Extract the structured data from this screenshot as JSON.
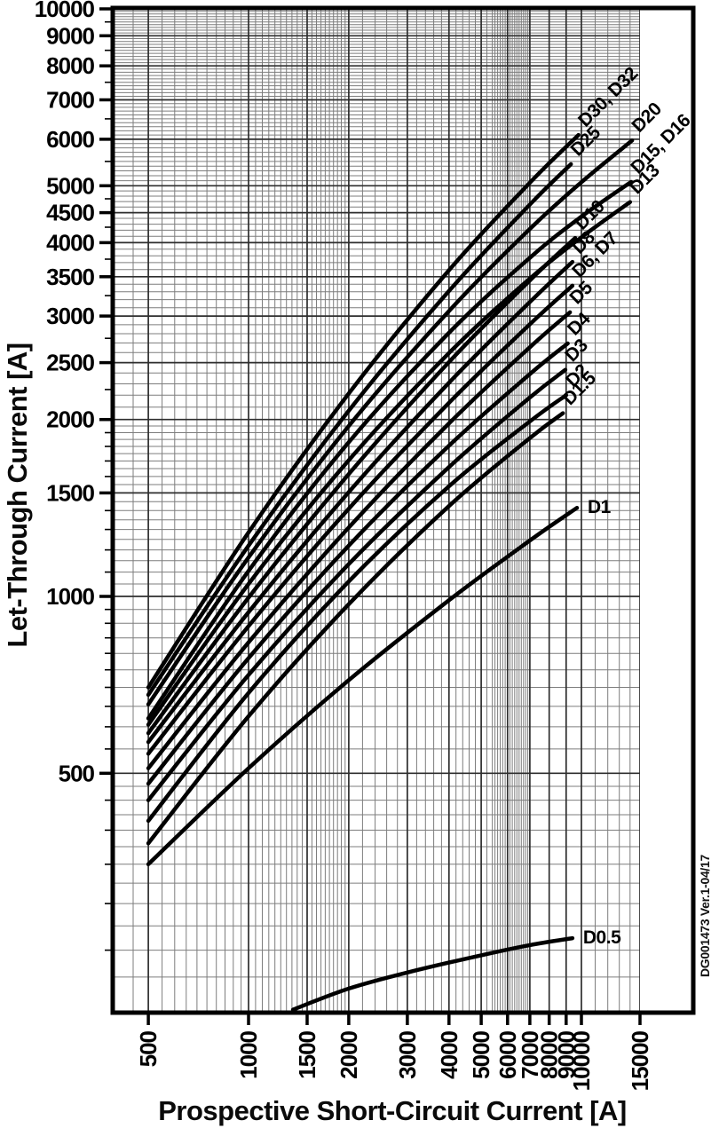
{
  "watermark": "DG001473 Ver.1-04/17",
  "colors": {
    "curve": "#000000",
    "grid_minor": "#7d7d7d",
    "grid_major": "#2e2e2e",
    "border": "#000000",
    "text": "#000000"
  },
  "chart_data": {
    "type": "line",
    "title": "",
    "xlabel": "Prospective Short-Circuit Current [A]",
    "ylabel": "Let-Through Current [A]",
    "watermark": "DG001473 Ver.1-04/17",
    "x_scale": "log",
    "y_scale": "log",
    "xlim": [
      400,
      21500
    ],
    "ylim": [
      197,
      10000
    ],
    "x_grid_max": 15000,
    "grid": "on",
    "x_ticks": [
      500,
      1000,
      1500,
      2000,
      3000,
      4000,
      5000,
      6000,
      7000,
      8000,
      9000,
      10000,
      15000
    ],
    "y_ticks": [
      500,
      1000,
      1500,
      2000,
      2500,
      3000,
      3500,
      4000,
      4500,
      5000,
      6000,
      7000,
      8000,
      9000,
      10000
    ],
    "y_minor_axis_ticks": [
      250,
      300,
      350,
      400,
      450,
      550,
      600,
      650,
      700,
      750,
      800,
      850,
      900,
      950,
      1100,
      1200,
      1300,
      1400,
      1600,
      1700,
      1800,
      1900,
      2250,
      2750,
      3250,
      3750,
      4250,
      4750,
      5500,
      6500,
      7500,
      8500,
      9500
    ],
    "series": [
      {
        "name": "D30, D32",
        "label_rotated": true,
        "points": [
          [
            500,
            700
          ],
          [
            1000,
            1285
          ],
          [
            2000,
            2215
          ],
          [
            4000,
            3590
          ],
          [
            7000,
            5060
          ],
          [
            9800,
            6100
          ]
        ]
      },
      {
        "name": "D25",
        "label_rotated": true,
        "points": [
          [
            500,
            680
          ],
          [
            1000,
            1220
          ],
          [
            2000,
            2070
          ],
          [
            4000,
            3310
          ],
          [
            7000,
            4645
          ],
          [
            9300,
            5440
          ]
        ]
      },
      {
        "name": "D20",
        "label_rotated": true,
        "points": [
          [
            500,
            655
          ],
          [
            1000,
            1165
          ],
          [
            2000,
            1950
          ],
          [
            4000,
            3060
          ],
          [
            7000,
            4220
          ],
          [
            10000,
            5070
          ],
          [
            14200,
            5970
          ]
        ]
      },
      {
        "name": "D15, D16",
        "label_rotated": true,
        "points": [
          [
            500,
            620
          ],
          [
            1000,
            1105
          ],
          [
            2000,
            1830
          ],
          [
            4000,
            2810
          ],
          [
            7000,
            3770
          ],
          [
            10000,
            4430
          ],
          [
            14100,
            5075
          ]
        ]
      },
      {
        "name": "D13",
        "label_rotated": true,
        "points": [
          [
            500,
            605
          ],
          [
            1000,
            1050
          ],
          [
            2000,
            1705
          ],
          [
            4000,
            2595
          ],
          [
            7000,
            3475
          ],
          [
            10000,
            4085
          ],
          [
            14000,
            4690
          ]
        ]
      },
      {
        "name": "D10",
        "label_rotated": true,
        "points": [
          [
            500,
            585
          ],
          [
            1000,
            995
          ],
          [
            2000,
            1615
          ],
          [
            4000,
            2505
          ],
          [
            7000,
            3450
          ],
          [
            9580,
            4075
          ]
        ]
      },
      {
        "name": "D8",
        "label_rotated": true,
        "points": [
          [
            500,
            565
          ],
          [
            1000,
            940
          ],
          [
            2000,
            1505
          ],
          [
            4000,
            2310
          ],
          [
            7000,
            3170
          ],
          [
            9400,
            3710
          ]
        ]
      },
      {
        "name": "D6, D7",
        "label_rotated": true,
        "points": [
          [
            500,
            540
          ],
          [
            1000,
            890
          ],
          [
            2000,
            1410
          ],
          [
            4000,
            2135
          ],
          [
            7000,
            2905
          ],
          [
            9400,
            3380
          ]
        ]
      },
      {
        "name": "D5",
        "label_rotated": true,
        "points": [
          [
            500,
            510
          ],
          [
            1000,
            835
          ],
          [
            2000,
            1310
          ],
          [
            4000,
            1970
          ],
          [
            7000,
            2655
          ],
          [
            9240,
            3045
          ]
        ]
      },
      {
        "name": "D4",
        "label_rotated": true,
        "points": [
          [
            500,
            480
          ],
          [
            1000,
            785
          ],
          [
            2000,
            1220
          ],
          [
            4000,
            1805
          ],
          [
            7000,
            2390
          ],
          [
            9100,
            2695
          ]
        ]
      },
      {
        "name": "D3",
        "label_rotated": true,
        "points": [
          [
            500,
            450
          ],
          [
            1000,
            735
          ],
          [
            2000,
            1135
          ],
          [
            4000,
            1660
          ],
          [
            7000,
            2180
          ],
          [
            8950,
            2430
          ]
        ]
      },
      {
        "name": "D2",
        "label_rotated": true,
        "points": [
          [
            500,
            415
          ],
          [
            1000,
            685
          ],
          [
            2000,
            1060
          ],
          [
            4000,
            1540
          ],
          [
            7000,
            1985
          ],
          [
            9000,
            2200
          ]
        ]
      },
      {
        "name": "D1.5",
        "label_rotated": true,
        "points": [
          [
            500,
            380
          ],
          [
            1000,
            625
          ],
          [
            2000,
            970
          ],
          [
            4000,
            1425
          ],
          [
            7000,
            1860
          ],
          [
            8800,
            2050
          ]
        ]
      },
      {
        "name": "D1",
        "label_rotated": false,
        "points": [
          [
            500,
            350
          ],
          [
            1000,
            510
          ],
          [
            2000,
            720
          ],
          [
            4000,
            985
          ],
          [
            7000,
            1245
          ],
          [
            9700,
            1415
          ]
        ]
      },
      {
        "name": "D0.5",
        "label_rotated": false,
        "points": [
          [
            1360,
            198
          ],
          [
            2000,
            215
          ],
          [
            3000,
            229
          ],
          [
            5000,
            245
          ],
          [
            7000,
            255
          ],
          [
            9400,
            262
          ]
        ]
      }
    ]
  }
}
